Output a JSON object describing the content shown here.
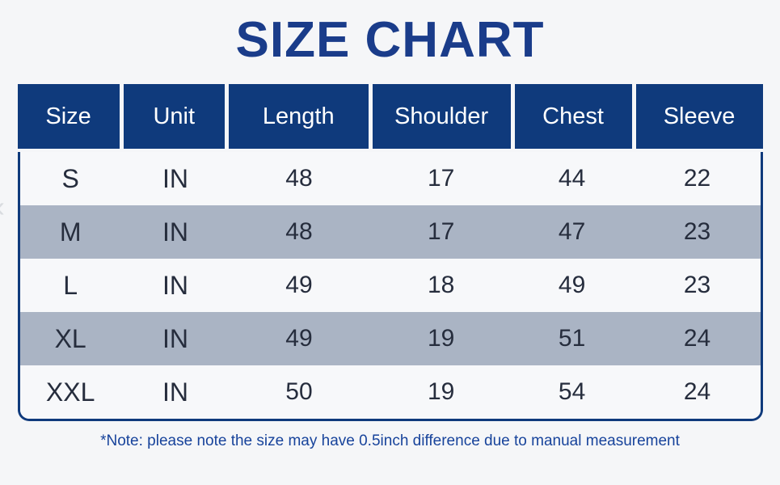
{
  "chart_data": {
    "type": "table",
    "title": "SIZE CHART",
    "columns": [
      "Size",
      "Unit",
      "Length",
      "Shoulder",
      "Chest",
      "Sleeve"
    ],
    "rows": [
      [
        "S",
        "IN",
        "48",
        "17",
        "44",
        "22"
      ],
      [
        "M",
        "IN",
        "48",
        "17",
        "47",
        "23"
      ],
      [
        "L",
        "IN",
        "49",
        "18",
        "49",
        "23"
      ],
      [
        "XL",
        "IN",
        "49",
        "19",
        "51",
        "24"
      ],
      [
        "XXL",
        "IN",
        "50",
        "19",
        "54",
        "24"
      ]
    ],
    "note": "*Note: please note the size may have 0.5inch difference due to manual measurement"
  },
  "colors": {
    "header_navy": "#0f3a7c",
    "title_blue": "#1a3c8a",
    "note_blue": "#17439b",
    "row_alt_bluegray": "#aab4c4",
    "row_light": "#f7f8fa",
    "body_text": "#262d3d",
    "page_background": "#f5f6f8"
  },
  "icons": {
    "left_edge_chevron": "‹"
  }
}
